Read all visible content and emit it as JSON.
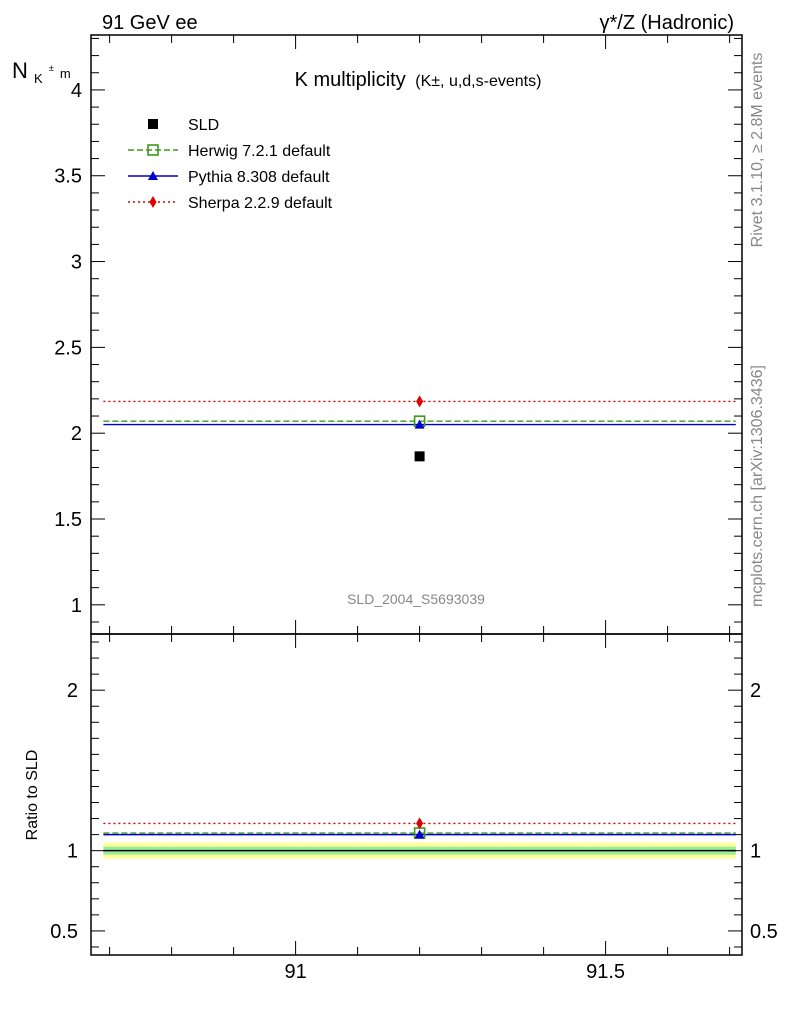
{
  "header": {
    "left": "91 GeV ee",
    "right": "γ*/Z (Hadronic)"
  },
  "side_labels": {
    "rivet": "Rivet 3.1.10, ≥ 2.8M events",
    "mcplots": "mcplots.cern.ch [arXiv:1306.3436]"
  },
  "watermark": "SLD_2004_S5693039",
  "chart_data": {
    "type": "scatter",
    "title": "K multiplicity",
    "subtitle": "(K±, u,d,s-events)",
    "ylabel_main": "N",
    "ylabel_sub": "K",
    "ylabel_sup": "±",
    "ylabel_tail": "m",
    "ratio_ylabel": "Ratio to SLD",
    "xlim": [
      90.67,
      91.72
    ],
    "ylim_main": [
      0.83,
      4.32
    ],
    "ylim_ratio": [
      0.35,
      2.35
    ],
    "x_ticks": [
      "91",
      "91.5"
    ],
    "y_ticks_main": [
      "1",
      "1.5",
      "2",
      "2.5",
      "3",
      "3.5",
      "4"
    ],
    "y_ticks_ratio": [
      "0.5",
      "1",
      "2"
    ],
    "bin": [
      90.69,
      91.71
    ],
    "data_x": 91.2,
    "reference": {
      "name": "SLD",
      "value": 1.865,
      "color": "#000000"
    },
    "series": [
      {
        "name": "Herwig 7.2.1 default",
        "value": 2.07,
        "ratio": 1.11,
        "color": "#3d9a1a",
        "marker": "open-square",
        "line": "dashed"
      },
      {
        "name": "Pythia 8.308 default",
        "value": 2.05,
        "ratio": 1.1,
        "color": "#0000cc",
        "marker": "triangle",
        "line": "solid"
      },
      {
        "name": "Sherpa 2.2.9 default",
        "value": 2.185,
        "ratio": 1.17,
        "color": "#dd0000",
        "marker": "diamond",
        "line": "dotted"
      }
    ],
    "ratio_bands": [
      {
        "lower": 0.95,
        "upper": 1.05,
        "color": "#ffff99"
      },
      {
        "lower": 0.975,
        "upper": 1.025,
        "color": "#99ee99"
      }
    ],
    "legend": "top-left"
  }
}
